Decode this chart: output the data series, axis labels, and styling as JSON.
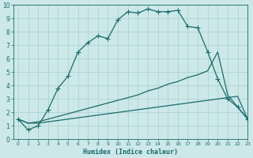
{
  "xlabel": "Humidex (Indice chaleur)",
  "ylabel": "",
  "xlim": [
    -0.5,
    23
  ],
  "ylim": [
    0,
    10
  ],
  "bg_color": "#cce8e8",
  "grid_color": "#aacfcf",
  "line_color": "#1a6b6b",
  "line1_x": [
    0,
    1,
    2,
    3,
    4,
    5,
    6,
    7,
    8,
    9,
    10,
    11,
    12,
    13,
    14,
    15,
    16,
    17,
    18,
    19,
    20,
    21,
    22,
    23
  ],
  "line1_y": [
    1.5,
    0.7,
    1.0,
    2.2,
    3.8,
    4.7,
    6.5,
    7.2,
    7.7,
    7.5,
    8.9,
    9.5,
    9.4,
    9.7,
    9.5,
    9.5,
    9.6,
    8.4,
    8.3,
    6.5,
    4.5,
    3.0,
    2.4,
    1.5
  ],
  "line2_x": [
    0,
    1,
    2,
    3,
    4,
    5,
    6,
    7,
    8,
    9,
    10,
    11,
    12,
    13,
    14,
    15,
    16,
    17,
    18,
    19,
    20,
    21,
    22,
    23
  ],
  "line2_y": [
    1.5,
    1.2,
    1.2,
    1.3,
    1.4,
    1.5,
    1.6,
    1.7,
    1.8,
    1.9,
    2.0,
    2.1,
    2.2,
    2.3,
    2.4,
    2.5,
    2.6,
    2.7,
    2.8,
    2.9,
    3.0,
    3.1,
    3.2,
    1.5
  ],
  "line3_x": [
    0,
    1,
    2,
    3,
    4,
    5,
    6,
    7,
    8,
    9,
    10,
    11,
    12,
    13,
    14,
    15,
    16,
    17,
    18,
    19,
    20,
    21,
    22,
    23
  ],
  "line3_y": [
    1.5,
    1.2,
    1.3,
    1.5,
    1.7,
    1.9,
    2.1,
    2.3,
    2.5,
    2.7,
    2.9,
    3.1,
    3.3,
    3.6,
    3.8,
    4.1,
    4.3,
    4.6,
    4.8,
    5.1,
    6.5,
    3.3,
    2.4,
    1.5
  ]
}
